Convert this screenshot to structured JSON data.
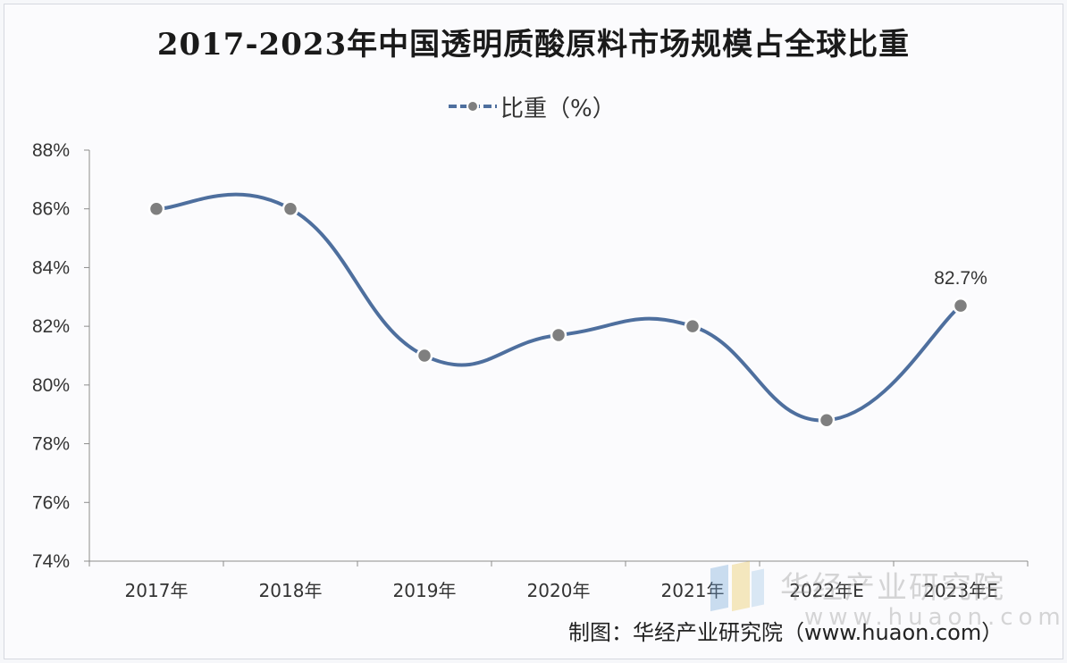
{
  "chart_data": {
    "type": "line",
    "title": "2017-2023年中国透明质酸原料市场规模占全球比重",
    "categories": [
      "2017年",
      "2018年",
      "2019年",
      "2020年",
      "2021年",
      "2022年E",
      "2023年E"
    ],
    "series": [
      {
        "name": "比重（%）",
        "values": [
          86.0,
          86.0,
          81.0,
          81.7,
          82.0,
          78.8,
          82.7
        ],
        "color": "#4e6f9e"
      }
    ],
    "y_ticks": [
      "74%",
      "76%",
      "78%",
      "80%",
      "82%",
      "84%",
      "86%",
      "88%"
    ],
    "ylim": [
      74,
      88
    ],
    "y_step": 2,
    "data_labels": [
      {
        "index": 6,
        "text": "82.7%"
      }
    ],
    "legend_position": "top-center",
    "grid": false,
    "smooth": true
  },
  "watermark": {
    "brand": "华经产业研究院",
    "url": "www.huaon.com"
  },
  "source": "制图：华经产业研究院（www.huaon.com）"
}
